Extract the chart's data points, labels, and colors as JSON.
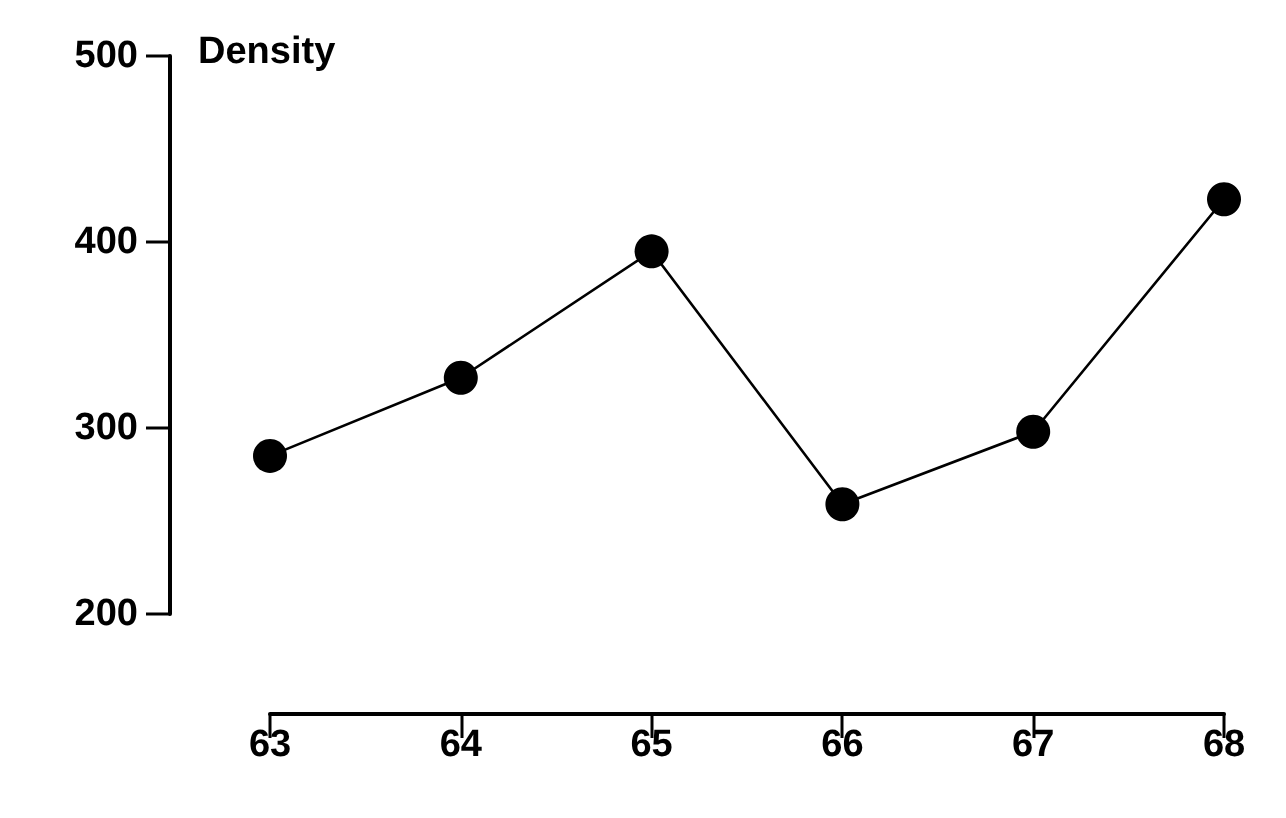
{
  "chart_data": {
    "type": "line",
    "ylabel": "Density",
    "x": [
      63,
      64,
      65,
      66,
      67,
      68
    ],
    "series": [
      {
        "color": "#000000",
        "values": [
          285,
          327,
          395,
          259,
          298,
          423
        ]
      }
    ],
    "xlim": [
      63,
      68
    ],
    "xticks": [
      63,
      64,
      65,
      66,
      67,
      68
    ],
    "ylim": [
      200,
      500
    ],
    "yticks": [
      200,
      300,
      400,
      500
    ],
    "marker": "circle",
    "line_style": "solid",
    "grid": false
  }
}
